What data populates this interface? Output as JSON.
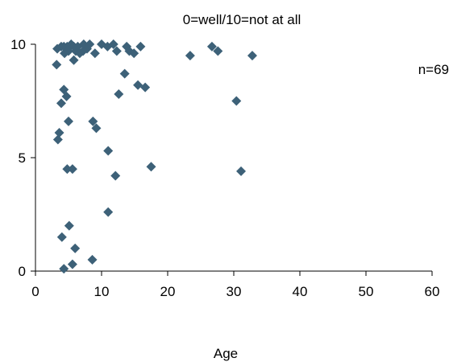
{
  "chart_data": {
    "type": "scatter",
    "title": "0=well/10=not at all",
    "xlabel": "Age",
    "ylabel": "",
    "annotation": "n=69",
    "xlim": [
      0,
      60
    ],
    "ylim": [
      0,
      10
    ],
    "x_ticks": [
      0,
      10,
      20,
      30,
      40,
      50,
      60
    ],
    "y_ticks": [
      0,
      5,
      10
    ],
    "grid": false,
    "marker": "diamond",
    "marker_color": "#3d6178",
    "points": [
      {
        "x": 3.3,
        "y": 9.8
      },
      {
        "x": 3.9,
        "y": 9.9
      },
      {
        "x": 4.3,
        "y": 9.9
      },
      {
        "x": 4.8,
        "y": 9.9
      },
      {
        "x": 5.2,
        "y": 9.9
      },
      {
        "x": 5.4,
        "y": 10.0
      },
      {
        "x": 5.8,
        "y": 9.9
      },
      {
        "x": 6.4,
        "y": 9.9
      },
      {
        "x": 7.3,
        "y": 10.0
      },
      {
        "x": 8.2,
        "y": 10.0
      },
      {
        "x": 10.0,
        "y": 10.0
      },
      {
        "x": 10.9,
        "y": 9.9
      },
      {
        "x": 11.8,
        "y": 10.0
      },
      {
        "x": 13.8,
        "y": 9.9
      },
      {
        "x": 15.9,
        "y": 9.9
      },
      {
        "x": 4.4,
        "y": 9.6
      },
      {
        "x": 5.0,
        "y": 9.7
      },
      {
        "x": 6.1,
        "y": 9.7
      },
      {
        "x": 6.7,
        "y": 9.6
      },
      {
        "x": 7.2,
        "y": 9.7
      },
      {
        "x": 7.8,
        "y": 9.8
      },
      {
        "x": 9.0,
        "y": 9.6
      },
      {
        "x": 12.3,
        "y": 9.7
      },
      {
        "x": 14.2,
        "y": 9.7
      },
      {
        "x": 14.9,
        "y": 9.6
      },
      {
        "x": 3.2,
        "y": 9.1
      },
      {
        "x": 5.8,
        "y": 9.3
      },
      {
        "x": 23.4,
        "y": 9.5
      },
      {
        "x": 26.7,
        "y": 9.9
      },
      {
        "x": 27.6,
        "y": 9.7
      },
      {
        "x": 32.8,
        "y": 9.5
      },
      {
        "x": 13.5,
        "y": 8.7
      },
      {
        "x": 15.5,
        "y": 8.2
      },
      {
        "x": 16.6,
        "y": 8.1
      },
      {
        "x": 4.3,
        "y": 8.0
      },
      {
        "x": 4.7,
        "y": 7.7
      },
      {
        "x": 3.9,
        "y": 7.4
      },
      {
        "x": 12.6,
        "y": 7.8
      },
      {
        "x": 30.4,
        "y": 7.5
      },
      {
        "x": 5.0,
        "y": 6.6
      },
      {
        "x": 8.7,
        "y": 6.6
      },
      {
        "x": 9.2,
        "y": 6.3
      },
      {
        "x": 3.6,
        "y": 6.1
      },
      {
        "x": 3.4,
        "y": 5.8
      },
      {
        "x": 11.0,
        "y": 5.3
      },
      {
        "x": 4.8,
        "y": 4.5
      },
      {
        "x": 5.6,
        "y": 4.5
      },
      {
        "x": 17.5,
        "y": 4.6
      },
      {
        "x": 31.1,
        "y": 4.4
      },
      {
        "x": 12.1,
        "y": 4.2
      },
      {
        "x": 11.0,
        "y": 2.6
      },
      {
        "x": 5.1,
        "y": 2.0
      },
      {
        "x": 4.0,
        "y": 1.5
      },
      {
        "x": 6.0,
        "y": 1.0
      },
      {
        "x": 8.6,
        "y": 0.5
      },
      {
        "x": 5.6,
        "y": 0.3
      },
      {
        "x": 4.3,
        "y": 0.1
      }
    ]
  }
}
